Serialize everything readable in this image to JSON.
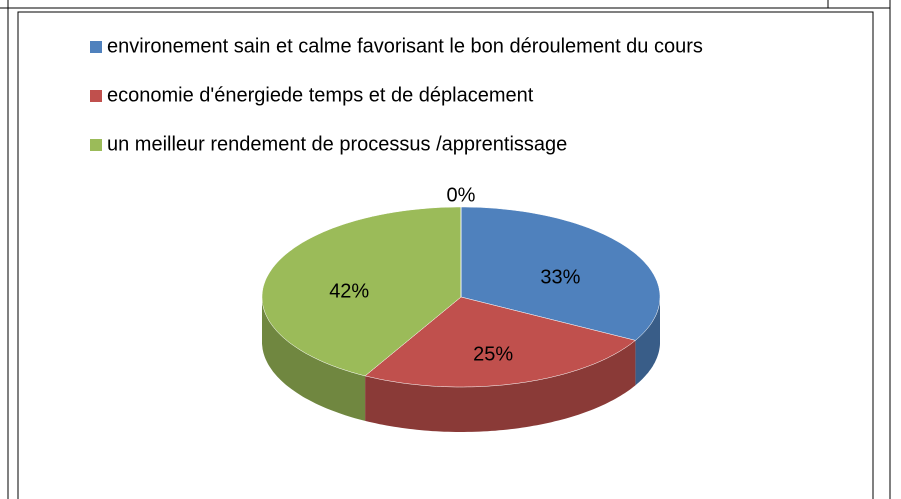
{
  "chart_data": {
    "type": "pie3d",
    "categories": [
      "environement sain et calme favorisant le bon déroulement du cours",
      "economie d'énergiede temps et de déplacement",
      "un meilleur rendement de processus /apprentissage",
      null
    ],
    "values": [
      33,
      25,
      42,
      0
    ],
    "value_labels": [
      "33%",
      "25%",
      "42%",
      "0%"
    ],
    "colors": [
      "#4f81bd",
      "#c0504d",
      "#9bbb59",
      "#8064a2"
    ],
    "legend": "top"
  }
}
